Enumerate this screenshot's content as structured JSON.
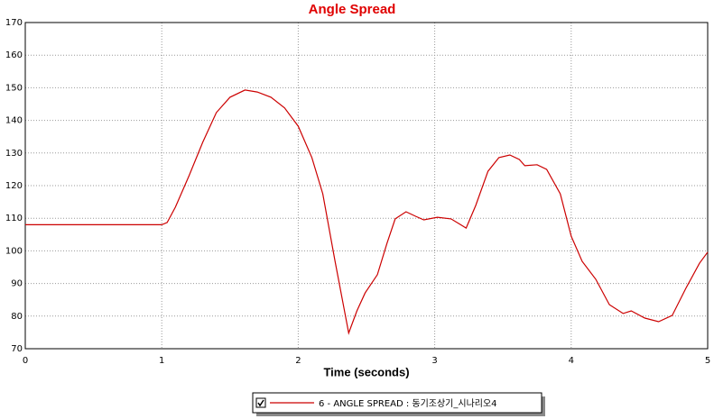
{
  "chart_data": {
    "type": "line",
    "title": "Angle Spread",
    "xlabel": "Time (seconds)",
    "x": [
      0,
      1.0,
      1.04,
      1.1,
      1.2,
      1.3,
      1.4,
      1.5,
      1.61,
      1.7,
      1.8,
      1.9,
      2.0,
      2.1,
      2.18,
      2.27,
      2.37,
      2.43,
      2.49,
      2.58,
      2.65,
      2.71,
      2.79,
      2.86,
      2.92,
      3.02,
      3.12,
      3.23,
      3.3,
      3.39,
      3.47,
      3.55,
      3.62,
      3.66,
      3.75,
      3.82,
      3.92,
      4.0,
      4.08,
      4.18,
      4.28,
      4.38,
      4.44,
      4.54,
      4.64,
      4.74,
      4.84,
      4.94,
      5.0
    ],
    "series": [
      {
        "name": "6 - ANGLE SPREAD : 동기조상기_시나리오4",
        "color": "#cc0000",
        "values": [
          108,
          108,
          108.7,
          113.4,
          123,
          133.3,
          142.4,
          147.1,
          149.3,
          148.7,
          147.1,
          143.8,
          138.2,
          128.6,
          117.5,
          96.8,
          74.8,
          81.6,
          87.1,
          92.7,
          102.3,
          109.8,
          112,
          110.6,
          109.5,
          110.3,
          109.8,
          107,
          113.9,
          124.4,
          128.6,
          129.4,
          128,
          126.1,
          126.4,
          125,
          117.5,
          104.5,
          96.8,
          91.3,
          83.5,
          80.8,
          81.6,
          79.4,
          78.3,
          80.2,
          88.5,
          96.2,
          99.6
        ]
      }
    ],
    "xlim": [
      0,
      5
    ],
    "xticks": [
      0,
      1,
      2,
      3,
      4,
      5
    ],
    "ylim": [
      70,
      170
    ],
    "yticks": [
      70,
      80,
      90,
      100,
      110,
      120,
      130,
      140,
      150,
      160,
      170
    ],
    "grid": true
  }
}
